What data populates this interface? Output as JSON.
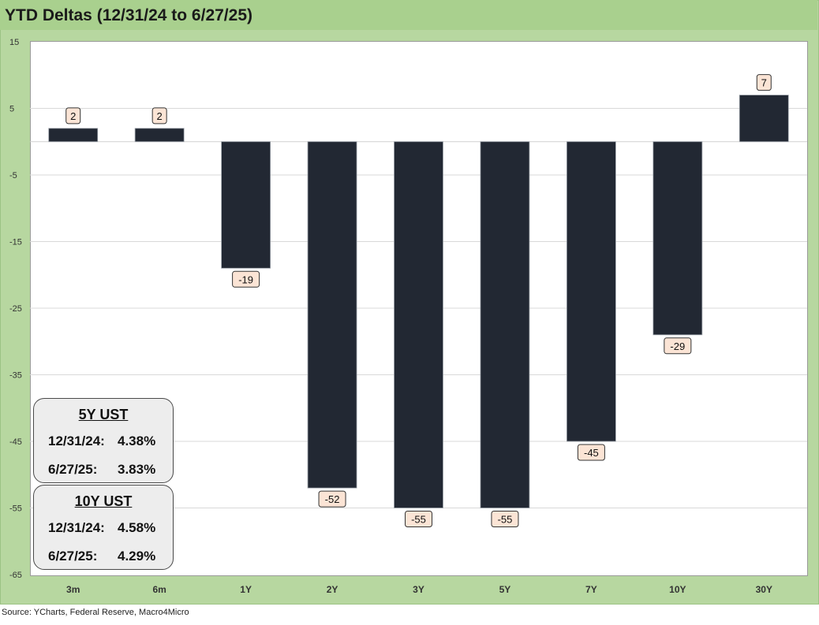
{
  "chart_data": {
    "type": "bar",
    "title": "YTD Deltas (12/31/24 to 6/27/25)",
    "categories": [
      "3m",
      "6m",
      "1Y",
      "2Y",
      "3Y",
      "5Y",
      "7Y",
      "10Y",
      "30Y"
    ],
    "values": [
      2,
      2,
      -19,
      -52,
      -55,
      -55,
      -45,
      -29,
      7
    ],
    "xlabel": "",
    "ylabel": "",
    "ylim": [
      -65,
      15
    ],
    "yticks": [
      15,
      5,
      -5,
      -15,
      -25,
      -35,
      -45,
      -55,
      -65
    ],
    "grid": true,
    "bar_color": "#222833",
    "label_bg": "#fbe4d5",
    "plot_bg": "#ffffff",
    "frame_color": "#b7d7a0"
  },
  "source": "Source: YCharts, Federal Reserve, Macro4Micro",
  "infoboxes": [
    {
      "title": "5Y UST",
      "rows": [
        {
          "date": "12/31/24:",
          "value": "4.38%"
        },
        {
          "date": "6/27/25:",
          "value": "3.83%"
        }
      ]
    },
    {
      "title": "10Y UST",
      "rows": [
        {
          "date": "12/31/24:",
          "value": "4.58%"
        },
        {
          "date": "6/27/25:",
          "value": "4.29%"
        }
      ]
    }
  ]
}
